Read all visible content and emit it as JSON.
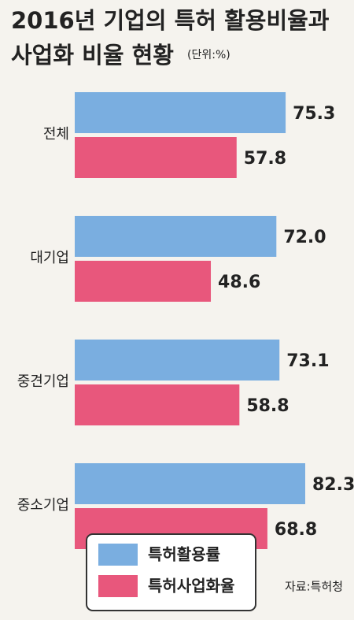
{
  "chart_data": {
    "type": "bar",
    "orientation": "horizontal",
    "title": "2016년 기업의 특허 활용비율과",
    "title_line2": "사업화 비율 현황",
    "unit": "(단위:%)",
    "source": "자료:특허청",
    "categories": [
      "전체",
      "대기업",
      "중견기업",
      "중소기업"
    ],
    "series": [
      {
        "name": "특허활용률",
        "color": "#7aaee0",
        "values": [
          75.3,
          72.0,
          73.1,
          82.3
        ],
        "value_labels": [
          "75.3",
          "72.0",
          "73.1",
          "82.3"
        ]
      },
      {
        "name": "특허사업화율",
        "color": "#e8577c",
        "values": [
          57.8,
          48.6,
          58.8,
          68.8
        ],
        "value_labels": [
          "57.8",
          "48.6",
          "58.8",
          "68.8"
        ]
      }
    ],
    "xlim": [
      0,
      100
    ]
  }
}
